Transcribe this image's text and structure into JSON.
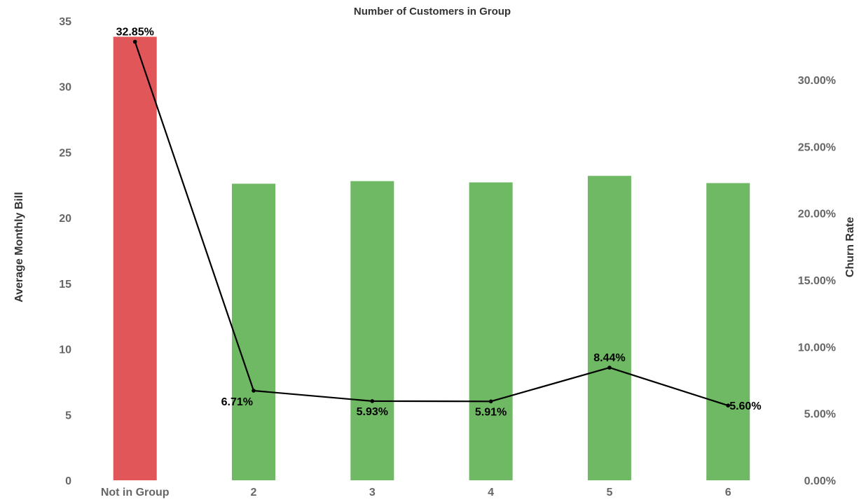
{
  "chart_data": {
    "type": "bar",
    "title": "Number of Customers in Group",
    "categories": [
      "Not in Group",
      "2",
      "3",
      "4",
      "5",
      "6"
    ],
    "series": [
      {
        "type": "bar",
        "axis": "left",
        "values": [
          33.8,
          22.6,
          22.8,
          22.7,
          23.2,
          22.65
        ],
        "colors": [
          "#e15759",
          "#6fb864",
          "#6fb864",
          "#6fb864",
          "#6fb864",
          "#6fb864"
        ]
      },
      {
        "type": "line",
        "axis": "right",
        "values": [
          32.85,
          6.71,
          5.93,
          5.91,
          8.44,
          5.6
        ],
        "labels": [
          "32.85%",
          "6.71%",
          "5.93%",
          "5.91%",
          "8.44%",
          "5.60%"
        ],
        "label_positions": [
          "above",
          "left",
          "below",
          "below",
          "above",
          "right"
        ],
        "color": "#000000"
      }
    ],
    "ylabel": "Average Monthly Bill",
    "y2label": "Churn Rate",
    "ylim": [
      0,
      35
    ],
    "y2lim": [
      0,
      34.4
    ],
    "yticks": [
      "0",
      "5",
      "10",
      "15",
      "20",
      "25",
      "30",
      "35"
    ],
    "yticks_values": [
      0,
      5,
      10,
      15,
      20,
      25,
      30,
      35
    ],
    "y2ticks": [
      "0.00%",
      "5.00%",
      "10.00%",
      "15.00%",
      "20.00%",
      "25.00%",
      "30.00%"
    ],
    "y2ticks_values": [
      0,
      5,
      10,
      15,
      20,
      25,
      30
    ],
    "grid": false,
    "legend": "none"
  }
}
